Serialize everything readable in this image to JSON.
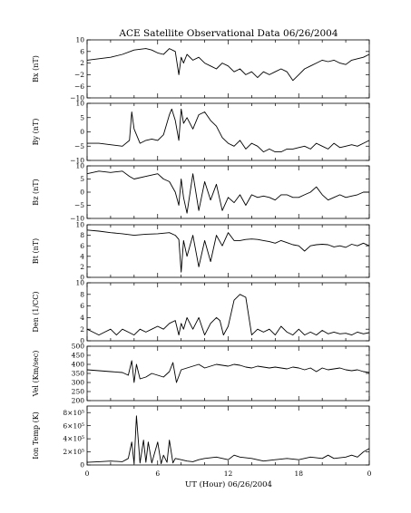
{
  "chart_data": {
    "type": "line",
    "title": "ACE Satellite Observational Data   06/26/2004",
    "xlabel": "UT (Hour)   06/26/2004",
    "x_tick_labels": [
      "0",
      "6",
      "12",
      "18",
      "0"
    ],
    "xlim": [
      0,
      24
    ],
    "line_color": "#000000",
    "panels": [
      {
        "ylabel": "Bx (nT)",
        "ylim": [
          -10,
          10
        ],
        "y_ticks": [
          "10",
          "6",
          "2",
          "−2",
          "−6",
          "−10"
        ],
        "y_tick_values": [
          10,
          6,
          2,
          -2,
          -6,
          -10
        ],
        "x": [
          0,
          1,
          2,
          3,
          4,
          5,
          5.5,
          6,
          6.5,
          7,
          7.5,
          7.8,
          8,
          8.2,
          8.5,
          9,
          9.5,
          10,
          10.5,
          11,
          11.5,
          12,
          12.5,
          13,
          13.5,
          14,
          14.5,
          15,
          15.5,
          16,
          16.5,
          17,
          17.5,
          18,
          18.5,
          19,
          19.5,
          20,
          20.5,
          21,
          21.5,
          22,
          22.5,
          23,
          23.5,
          24
        ],
        "y": [
          3,
          3.5,
          4,
          5,
          6.5,
          7,
          6.5,
          5.5,
          5,
          7,
          6,
          -2,
          4,
          2,
          5,
          3,
          4,
          2,
          1,
          0,
          2,
          1,
          -1,
          0,
          -2,
          -1,
          -3,
          -1,
          -2,
          -1,
          0,
          -1,
          -4,
          -2,
          0,
          1,
          2,
          3,
          2.5,
          3,
          2,
          1.5,
          3,
          3.5,
          4,
          5
        ]
      },
      {
        "ylabel": "By (nT)",
        "ylim": [
          -10,
          10
        ],
        "y_ticks": [
          "10",
          "5",
          "0",
          "−5",
          "−10"
        ],
        "y_tick_values": [
          10,
          5,
          0,
          -5,
          -10
        ],
        "x": [
          0,
          1,
          2,
          3,
          3.6,
          3.8,
          4,
          4.5,
          5,
          5.5,
          6,
          6.5,
          7,
          7.2,
          7.5,
          7.8,
          8,
          8.2,
          8.5,
          9,
          9.5,
          10,
          10.5,
          11,
          11.5,
          12,
          12.5,
          13,
          13.5,
          14,
          14.5,
          15,
          15.5,
          16,
          16.5,
          17,
          17.5,
          18,
          18.5,
          19,
          19.5,
          20,
          20.5,
          21,
          21.5,
          22,
          22.5,
          23,
          23.5,
          24
        ],
        "y": [
          -4,
          -4,
          -4.5,
          -5,
          -3,
          7,
          1,
          -4,
          -3,
          -2.5,
          -3,
          -1,
          6,
          8,
          4,
          -3,
          8,
          3,
          5,
          1,
          6,
          7,
          4,
          2,
          -2,
          -4,
          -5,
          -3,
          -6,
          -4,
          -5,
          -7,
          -6,
          -7,
          -7,
          -6,
          -6,
          -5.5,
          -5,
          -6,
          -4,
          -5,
          -6,
          -4,
          -5.5,
          -5,
          -4.5,
          -5,
          -4,
          -3
        ]
      },
      {
        "ylabel": "Bz (nT)",
        "ylim": [
          -10,
          10
        ],
        "y_ticks": [
          "10",
          "5",
          "0",
          "−5",
          "−10"
        ],
        "y_tick_values": [
          10,
          5,
          0,
          -5,
          -10
        ],
        "x": [
          0,
          1,
          2,
          3,
          3.6,
          4,
          5,
          6,
          6.5,
          7,
          7.5,
          7.8,
          8,
          8.2,
          8.5,
          9,
          9.5,
          10,
          10.5,
          11,
          11.5,
          12,
          12.5,
          13,
          13.5,
          14,
          14.5,
          15,
          15.5,
          16,
          16.5,
          17,
          17.5,
          18,
          18.5,
          19,
          19.5,
          20,
          20.5,
          21,
          21.5,
          22,
          22.5,
          23,
          23.5,
          24
        ],
        "y": [
          7,
          8,
          7.5,
          8,
          6,
          5,
          6,
          7,
          5,
          4,
          0,
          -5,
          5,
          -2,
          -8,
          7,
          -7,
          4,
          -3,
          3,
          -7,
          -2,
          -4,
          -1,
          -5,
          -1,
          -2,
          -1.5,
          -2,
          -3,
          -1,
          -1,
          -2,
          -2,
          -1,
          0,
          2,
          -1,
          -3,
          -2,
          -1,
          -2,
          -1.5,
          -1,
          0,
          0
        ]
      },
      {
        "ylabel": "Bt (nT)",
        "ylim": [
          0,
          10
        ],
        "y_ticks": [
          "10",
          "8",
          "6",
          "4",
          "2",
          "0"
        ],
        "y_tick_values": [
          10,
          8,
          6,
          4,
          2,
          0
        ],
        "x": [
          0,
          1,
          2,
          3,
          4,
          5,
          6,
          7,
          7.5,
          7.8,
          8,
          8.2,
          8.5,
          9,
          9.5,
          10,
          10.5,
          11,
          11.5,
          12,
          12.5,
          13,
          13.5,
          14,
          14.5,
          15,
          15.5,
          16,
          16.5,
          17,
          17.5,
          18,
          18.5,
          19,
          19.5,
          20,
          20.5,
          21,
          21.5,
          22,
          22.5,
          23,
          23.5,
          24
        ],
        "y": [
          9,
          8.8,
          8.5,
          8.3,
          8,
          8.2,
          8.3,
          8.5,
          8,
          7.2,
          1,
          7,
          4,
          8,
          2,
          7,
          3,
          8,
          6,
          8.5,
          7,
          7,
          7.2,
          7.3,
          7.2,
          7,
          6.8,
          6.5,
          7,
          6.6,
          6.2,
          6,
          5,
          6,
          6.2,
          6.3,
          6.2,
          5.8,
          6,
          5.7,
          6.3,
          6,
          6.5,
          6
        ]
      },
      {
        "ylabel": "Den (1/CC)",
        "ylim": [
          0,
          10
        ],
        "y_ticks": [
          "10",
          "8",
          "6",
          "4",
          "2",
          "0"
        ],
        "y_tick_values": [
          10,
          8,
          6,
          4,
          2,
          0
        ],
        "x": [
          0,
          0.5,
          1,
          1.5,
          2,
          2.5,
          3,
          3.5,
          4,
          4.5,
          5,
          5.5,
          6,
          6.5,
          7,
          7.5,
          7.8,
          8,
          8.2,
          8.5,
          9,
          9.5,
          10,
          10.5,
          11,
          11.3,
          11.6,
          12,
          12.5,
          13,
          13.5,
          14,
          14.5,
          15,
          15.5,
          16,
          16.5,
          17,
          17.5,
          18,
          18.5,
          19,
          19.5,
          20,
          20.5,
          21,
          21.5,
          22,
          22.5,
          23,
          23.5,
          24
        ],
        "y": [
          2,
          1.5,
          1,
          1.5,
          2,
          1,
          2,
          1.5,
          1,
          2,
          1.5,
          2,
          2.5,
          2,
          3,
          3.5,
          1,
          3,
          2,
          4,
          2,
          4,
          1,
          3,
          4,
          3.5,
          1,
          2.5,
          7,
          8,
          7.5,
          1,
          2,
          1.5,
          2,
          1,
          2.5,
          1.5,
          1,
          2,
          1,
          1.5,
          1,
          1.8,
          1.2,
          1.5,
          1.2,
          1.3,
          1,
          1.5,
          1.2,
          1.4
        ]
      },
      {
        "ylabel": "Vel (Km/sec)",
        "ylim": [
          200,
          500
        ],
        "y_ticks": [
          "500",
          "450",
          "400",
          "350",
          "300",
          "250",
          "200"
        ],
        "y_tick_values": [
          500,
          450,
          400,
          350,
          300,
          250,
          200
        ],
        "x": [
          0,
          1,
          2,
          3,
          3.5,
          3.8,
          4,
          4.2,
          4.5,
          5,
          5.5,
          6,
          6.5,
          7,
          7.3,
          7.6,
          8,
          8.5,
          9,
          9.5,
          10,
          10.5,
          11,
          11.5,
          12,
          12.5,
          13,
          13.5,
          14,
          14.5,
          15,
          15.5,
          16,
          16.5,
          17,
          17.5,
          18,
          18.5,
          19,
          19.5,
          20,
          20.5,
          21,
          21.5,
          22,
          22.5,
          23,
          23.5,
          24
        ],
        "y": [
          370,
          365,
          360,
          355,
          340,
          420,
          300,
          400,
          320,
          330,
          350,
          340,
          330,
          360,
          410,
          300,
          370,
          380,
          390,
          400,
          380,
          390,
          400,
          395,
          390,
          400,
          395,
          385,
          380,
          390,
          385,
          380,
          385,
          380,
          375,
          385,
          380,
          370,
          380,
          360,
          380,
          370,
          375,
          380,
          370,
          365,
          370,
          360,
          355
        ]
      },
      {
        "ylabel": "Ion Temp (K)",
        "ylim": [
          0,
          900000
        ],
        "y_ticks": [
          "8×10⁵",
          "6×10⁵",
          "4×10⁵",
          "2×10⁵",
          "0"
        ],
        "y_tick_values": [
          800000,
          600000,
          400000,
          200000,
          0
        ],
        "x": [
          0,
          1,
          2,
          3,
          3.5,
          3.8,
          4,
          4.2,
          4.5,
          4.8,
          5,
          5.2,
          5.5,
          6,
          6.3,
          6.5,
          6.8,
          7,
          7.3,
          7.5,
          8,
          8.5,
          9,
          9.5,
          10,
          11,
          12,
          12.5,
          13,
          14,
          15,
          16,
          17,
          18,
          19,
          20,
          20.5,
          21,
          22,
          22.5,
          23,
          23.5,
          24
        ],
        "y": [
          40000,
          50000,
          60000,
          50000,
          100000,
          350000,
          20000,
          750000,
          30000,
          380000,
          40000,
          350000,
          30000,
          350000,
          20000,
          150000,
          40000,
          380000,
          30000,
          100000,
          80000,
          60000,
          50000,
          80000,
          100000,
          120000,
          80000,
          150000,
          120000,
          100000,
          60000,
          80000,
          100000,
          80000,
          120000,
          100000,
          150000,
          100000,
          120000,
          150000,
          120000,
          200000,
          250000
        ]
      }
    ]
  }
}
